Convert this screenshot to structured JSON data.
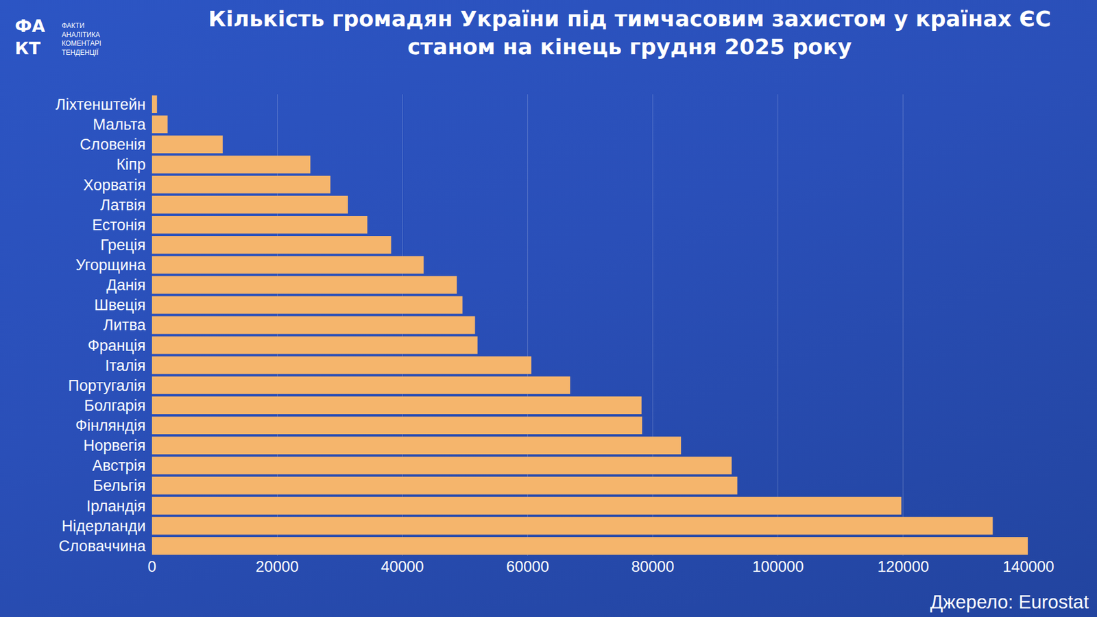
{
  "chart_data": {
    "type": "bar",
    "orientation": "horizontal",
    "title": "Кількість громадян України під тимчасовим захистом у країнах ЄС станом на кінець грудня 2025 року",
    "source": "Джерело: Eurostat",
    "logo": {
      "mark": "ФАКТ",
      "text": [
        "ФАКТИ",
        "АНАЛІТИКА",
        "КОМЕНТАРІ",
        "ТЕНДЕНЦІЇ"
      ]
    },
    "categories": [
      "Ліхтенштейн",
      "Мальта",
      "Словенія",
      "Кіпр",
      "Хорватія",
      "Латвія",
      "Естонія",
      "Греція",
      "Угорщина",
      "Данія",
      "Швеція",
      "Литва",
      "Франція",
      "Італія",
      "Португалія",
      "Болгарія",
      "Фінляндія",
      "Норвегія",
      "Австрія",
      "Бельгія",
      "Ірландія",
      "Нідерланди",
      "Словаччина"
    ],
    "values": [
      800,
      2500,
      11300,
      25300,
      28500,
      31300,
      34400,
      38200,
      43400,
      48700,
      49600,
      51600,
      52000,
      60600,
      66800,
      78200,
      78300,
      84500,
      92600,
      93500,
      119700,
      134300,
      139900
    ],
    "color": "#f5b56c",
    "xlim": [
      0,
      140000
    ],
    "xticks": [
      0,
      20000,
      40000,
      60000,
      80000,
      100000,
      120000,
      140000
    ],
    "grid": true,
    "data_labels": false
  }
}
